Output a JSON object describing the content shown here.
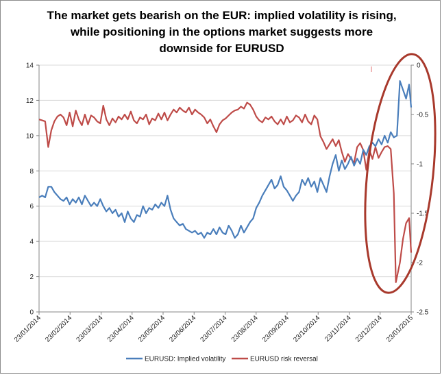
{
  "chart_data": {
    "type": "line",
    "title": "The market gets bearish on the EUR: implied volatility is rising,\nwhile positioning in the options market suggests more\ndownside for EURUSD",
    "x_tick_labels": [
      "23/01/2014",
      "23/02/2014",
      "23/03/2014",
      "23/04/2014",
      "23/05/2014",
      "23/06/2014",
      "23/07/2014",
      "23/08/2014",
      "23/09/2014",
      "23/10/2014",
      "23/11/2014",
      "23/12/2014",
      "23/01/2015"
    ],
    "ylim_left": [
      0,
      14
    ],
    "y_ticks_left": [
      "0",
      "2",
      "4",
      "6",
      "8",
      "10",
      "12",
      "14"
    ],
    "ylim_right": [
      -2.5,
      0
    ],
    "y_ticks_right": [
      "-2.5",
      "-2",
      "-1.5",
      "-1",
      "-0.5",
      "0"
    ],
    "grid": "horizontal",
    "legend_position": "bottom",
    "series": [
      {
        "name": "EURUSD: Implied volatility",
        "axis": "left",
        "color": "#4a7ebb",
        "points": [
          [
            "2014-01-23",
            6.5
          ],
          [
            "2014-01-26",
            6.6
          ],
          [
            "2014-01-29",
            6.5
          ],
          [
            "2014-02-01",
            7.1
          ],
          [
            "2014-02-04",
            7.1
          ],
          [
            "2014-02-07",
            6.8
          ],
          [
            "2014-02-10",
            6.6
          ],
          [
            "2014-02-13",
            6.4
          ],
          [
            "2014-02-16",
            6.3
          ],
          [
            "2014-02-19",
            6.5
          ],
          [
            "2014-02-22",
            6.1
          ],
          [
            "2014-02-25",
            6.4
          ],
          [
            "2014-02-28",
            6.2
          ],
          [
            "2014-03-03",
            6.5
          ],
          [
            "2014-03-06",
            6.1
          ],
          [
            "2014-03-09",
            6.6
          ],
          [
            "2014-03-12",
            6.3
          ],
          [
            "2014-03-15",
            6.0
          ],
          [
            "2014-03-18",
            6.2
          ],
          [
            "2014-03-21",
            6.0
          ],
          [
            "2014-03-24",
            6.4
          ],
          [
            "2014-03-27",
            6.0
          ],
          [
            "2014-03-30",
            5.7
          ],
          [
            "2014-04-02",
            5.9
          ],
          [
            "2014-04-05",
            5.6
          ],
          [
            "2014-04-08",
            5.8
          ],
          [
            "2014-04-11",
            5.4
          ],
          [
            "2014-04-14",
            5.6
          ],
          [
            "2014-04-17",
            5.1
          ],
          [
            "2014-04-20",
            5.7
          ],
          [
            "2014-04-23",
            5.3
          ],
          [
            "2014-04-26",
            5.1
          ],
          [
            "2014-04-29",
            5.5
          ],
          [
            "2014-05-02",
            5.4
          ],
          [
            "2014-05-05",
            6.0
          ],
          [
            "2014-05-08",
            5.6
          ],
          [
            "2014-05-11",
            5.9
          ],
          [
            "2014-05-14",
            5.8
          ],
          [
            "2014-05-17",
            6.1
          ],
          [
            "2014-05-20",
            5.9
          ],
          [
            "2014-05-23",
            6.2
          ],
          [
            "2014-05-26",
            6.0
          ],
          [
            "2014-05-29",
            6.6
          ],
          [
            "2014-06-01",
            5.8
          ],
          [
            "2014-06-04",
            5.3
          ],
          [
            "2014-06-07",
            5.1
          ],
          [
            "2014-06-10",
            4.9
          ],
          [
            "2014-06-13",
            5.0
          ],
          [
            "2014-06-16",
            4.7
          ],
          [
            "2014-06-19",
            4.6
          ],
          [
            "2014-06-22",
            4.5
          ],
          [
            "2014-06-25",
            4.6
          ],
          [
            "2014-06-28",
            4.4
          ],
          [
            "2014-07-01",
            4.5
          ],
          [
            "2014-07-04",
            4.2
          ],
          [
            "2014-07-07",
            4.5
          ],
          [
            "2014-07-10",
            4.4
          ],
          [
            "2014-07-13",
            4.7
          ],
          [
            "2014-07-16",
            4.4
          ],
          [
            "2014-07-19",
            4.8
          ],
          [
            "2014-07-22",
            4.5
          ],
          [
            "2014-07-25",
            4.4
          ],
          [
            "2014-07-28",
            4.9
          ],
          [
            "2014-07-31",
            4.6
          ],
          [
            "2014-08-03",
            4.2
          ],
          [
            "2014-08-06",
            4.4
          ],
          [
            "2014-08-09",
            4.9
          ],
          [
            "2014-08-12",
            4.5
          ],
          [
            "2014-08-15",
            4.8
          ],
          [
            "2014-08-18",
            5.1
          ],
          [
            "2014-08-21",
            5.3
          ],
          [
            "2014-08-24",
            5.9
          ],
          [
            "2014-08-27",
            6.2
          ],
          [
            "2014-08-30",
            6.6
          ],
          [
            "2014-09-02",
            6.9
          ],
          [
            "2014-09-05",
            7.2
          ],
          [
            "2014-09-08",
            7.5
          ],
          [
            "2014-09-11",
            7.0
          ],
          [
            "2014-09-14",
            7.2
          ],
          [
            "2014-09-17",
            7.7
          ],
          [
            "2014-09-20",
            7.1
          ],
          [
            "2014-09-23",
            6.9
          ],
          [
            "2014-09-26",
            6.6
          ],
          [
            "2014-09-29",
            6.3
          ],
          [
            "2014-10-02",
            6.6
          ],
          [
            "2014-10-05",
            6.8
          ],
          [
            "2014-10-08",
            7.5
          ],
          [
            "2014-10-11",
            7.2
          ],
          [
            "2014-10-14",
            7.6
          ],
          [
            "2014-10-17",
            7.1
          ],
          [
            "2014-10-20",
            7.4
          ],
          [
            "2014-10-23",
            6.8
          ],
          [
            "2014-10-26",
            7.6
          ],
          [
            "2014-10-29",
            7.2
          ],
          [
            "2014-11-01",
            6.8
          ],
          [
            "2014-11-04",
            7.7
          ],
          [
            "2014-11-07",
            8.4
          ],
          [
            "2014-11-10",
            8.9
          ],
          [
            "2014-11-13",
            8.0
          ],
          [
            "2014-11-16",
            8.6
          ],
          [
            "2014-11-19",
            8.1
          ],
          [
            "2014-11-22",
            8.4
          ],
          [
            "2014-11-25",
            8.8
          ],
          [
            "2014-11-28",
            8.3
          ],
          [
            "2014-12-01",
            8.7
          ],
          [
            "2014-12-04",
            8.4
          ],
          [
            "2014-12-07",
            9.2
          ],
          [
            "2014-12-10",
            8.9
          ],
          [
            "2014-12-13",
            9.4
          ],
          [
            "2014-12-16",
            9.6
          ],
          [
            "2014-12-19",
            9.4
          ],
          [
            "2014-12-22",
            9.8
          ],
          [
            "2014-12-25",
            9.5
          ],
          [
            "2014-12-28",
            10.0
          ],
          [
            "2014-12-31",
            9.6
          ],
          [
            "2015-01-03",
            10.2
          ],
          [
            "2015-01-06",
            9.9
          ],
          [
            "2015-01-09",
            10.0
          ],
          [
            "2015-01-12",
            13.1
          ],
          [
            "2015-01-15",
            12.6
          ],
          [
            "2015-01-18",
            12.1
          ],
          [
            "2015-01-21",
            12.9
          ],
          [
            "2015-01-23",
            11.6
          ]
        ]
      },
      {
        "name": "EURUSD risk reversal",
        "axis": "right",
        "color": "#be4b48",
        "points": [
          [
            "2014-01-23",
            -0.55
          ],
          [
            "2014-01-26",
            -0.56
          ],
          [
            "2014-01-29",
            -0.57
          ],
          [
            "2014-02-01",
            -0.83
          ],
          [
            "2014-02-04",
            -0.66
          ],
          [
            "2014-02-07",
            -0.57
          ],
          [
            "2014-02-10",
            -0.52
          ],
          [
            "2014-02-13",
            -0.5
          ],
          [
            "2014-02-16",
            -0.53
          ],
          [
            "2014-02-19",
            -0.61
          ],
          [
            "2014-02-22",
            -0.48
          ],
          [
            "2014-02-25",
            -0.62
          ],
          [
            "2014-02-28",
            -0.46
          ],
          [
            "2014-03-03",
            -0.55
          ],
          [
            "2014-03-06",
            -0.61
          ],
          [
            "2014-03-09",
            -0.5
          ],
          [
            "2014-03-12",
            -0.6
          ],
          [
            "2014-03-15",
            -0.51
          ],
          [
            "2014-03-18",
            -0.53
          ],
          [
            "2014-03-21",
            -0.57
          ],
          [
            "2014-03-24",
            -0.59
          ],
          [
            "2014-03-27",
            -0.41
          ],
          [
            "2014-03-30",
            -0.55
          ],
          [
            "2014-04-02",
            -0.61
          ],
          [
            "2014-04-05",
            -0.54
          ],
          [
            "2014-04-08",
            -0.58
          ],
          [
            "2014-04-11",
            -0.52
          ],
          [
            "2014-04-14",
            -0.55
          ],
          [
            "2014-04-17",
            -0.5
          ],
          [
            "2014-04-20",
            -0.55
          ],
          [
            "2014-04-23",
            -0.47
          ],
          [
            "2014-04-26",
            -0.56
          ],
          [
            "2014-04-29",
            -0.59
          ],
          [
            "2014-05-02",
            -0.53
          ],
          [
            "2014-05-05",
            -0.55
          ],
          [
            "2014-05-08",
            -0.5
          ],
          [
            "2014-05-11",
            -0.6
          ],
          [
            "2014-05-14",
            -0.54
          ],
          [
            "2014-05-17",
            -0.56
          ],
          [
            "2014-05-20",
            -0.49
          ],
          [
            "2014-05-23",
            -0.55
          ],
          [
            "2014-05-26",
            -0.48
          ],
          [
            "2014-05-29",
            -0.56
          ],
          [
            "2014-06-01",
            -0.5
          ],
          [
            "2014-06-04",
            -0.45
          ],
          [
            "2014-06-07",
            -0.48
          ],
          [
            "2014-06-10",
            -0.43
          ],
          [
            "2014-06-13",
            -0.46
          ],
          [
            "2014-06-16",
            -0.48
          ],
          [
            "2014-06-19",
            -0.43
          ],
          [
            "2014-06-22",
            -0.5
          ],
          [
            "2014-06-25",
            -0.45
          ],
          [
            "2014-06-28",
            -0.48
          ],
          [
            "2014-07-01",
            -0.5
          ],
          [
            "2014-07-04",
            -0.53
          ],
          [
            "2014-07-07",
            -0.59
          ],
          [
            "2014-07-10",
            -0.55
          ],
          [
            "2014-07-13",
            -0.62
          ],
          [
            "2014-07-16",
            -0.68
          ],
          [
            "2014-07-19",
            -0.6
          ],
          [
            "2014-07-22",
            -0.56
          ],
          [
            "2014-07-25",
            -0.54
          ],
          [
            "2014-07-28",
            -0.51
          ],
          [
            "2014-07-31",
            -0.48
          ],
          [
            "2014-08-03",
            -0.46
          ],
          [
            "2014-08-06",
            -0.45
          ],
          [
            "2014-08-09",
            -0.42
          ],
          [
            "2014-08-12",
            -0.44
          ],
          [
            "2014-08-15",
            -0.38
          ],
          [
            "2014-08-18",
            -0.4
          ],
          [
            "2014-08-21",
            -0.45
          ],
          [
            "2014-08-24",
            -0.52
          ],
          [
            "2014-08-27",
            -0.56
          ],
          [
            "2014-08-30",
            -0.58
          ],
          [
            "2014-09-02",
            -0.53
          ],
          [
            "2014-09-05",
            -0.55
          ],
          [
            "2014-09-08",
            -0.52
          ],
          [
            "2014-09-11",
            -0.57
          ],
          [
            "2014-09-14",
            -0.6
          ],
          [
            "2014-09-17",
            -0.55
          ],
          [
            "2014-09-20",
            -0.6
          ],
          [
            "2014-09-23",
            -0.52
          ],
          [
            "2014-09-26",
            -0.58
          ],
          [
            "2014-09-29",
            -0.56
          ],
          [
            "2014-10-02",
            -0.51
          ],
          [
            "2014-10-05",
            -0.53
          ],
          [
            "2014-10-08",
            -0.58
          ],
          [
            "2014-10-11",
            -0.5
          ],
          [
            "2014-10-14",
            -0.57
          ],
          [
            "2014-10-17",
            -0.6
          ],
          [
            "2014-10-20",
            -0.51
          ],
          [
            "2014-10-23",
            -0.55
          ],
          [
            "2014-10-26",
            -0.72
          ],
          [
            "2014-10-29",
            -0.78
          ],
          [
            "2014-11-01",
            -0.85
          ],
          [
            "2014-11-04",
            -0.8
          ],
          [
            "2014-11-07",
            -0.75
          ],
          [
            "2014-11-10",
            -0.82
          ],
          [
            "2014-11-13",
            -0.76
          ],
          [
            "2014-11-16",
            -0.88
          ],
          [
            "2014-11-19",
            -0.98
          ],
          [
            "2014-11-22",
            -0.9
          ],
          [
            "2014-11-25",
            -0.95
          ],
          [
            "2014-11-28",
            -0.99
          ],
          [
            "2014-12-01",
            -0.83
          ],
          [
            "2014-12-04",
            -0.79
          ],
          [
            "2014-12-07",
            -0.86
          ],
          [
            "2014-12-10",
            -1.06
          ],
          [
            "2014-12-13",
            -0.86
          ],
          [
            "2014-12-16",
            -0.95
          ],
          [
            "2014-12-19",
            -0.83
          ],
          [
            "2014-12-22",
            -0.94
          ],
          [
            "2014-12-25",
            -0.88
          ],
          [
            "2014-12-28",
            -0.83
          ],
          [
            "2014-12-31",
            -0.82
          ],
          [
            "2015-01-03",
            -0.85
          ],
          [
            "2015-01-06",
            -1.3
          ],
          [
            "2015-01-08",
            -2.2
          ],
          [
            "2015-01-12",
            -2.0
          ],
          [
            "2015-01-15",
            -1.76
          ],
          [
            "2015-01-18",
            -1.6
          ],
          [
            "2015-01-21",
            -1.55
          ],
          [
            "2015-01-23",
            -1.9
          ]
        ]
      }
    ],
    "annotation": "red ellipse highlighting the January 2015 moves"
  }
}
